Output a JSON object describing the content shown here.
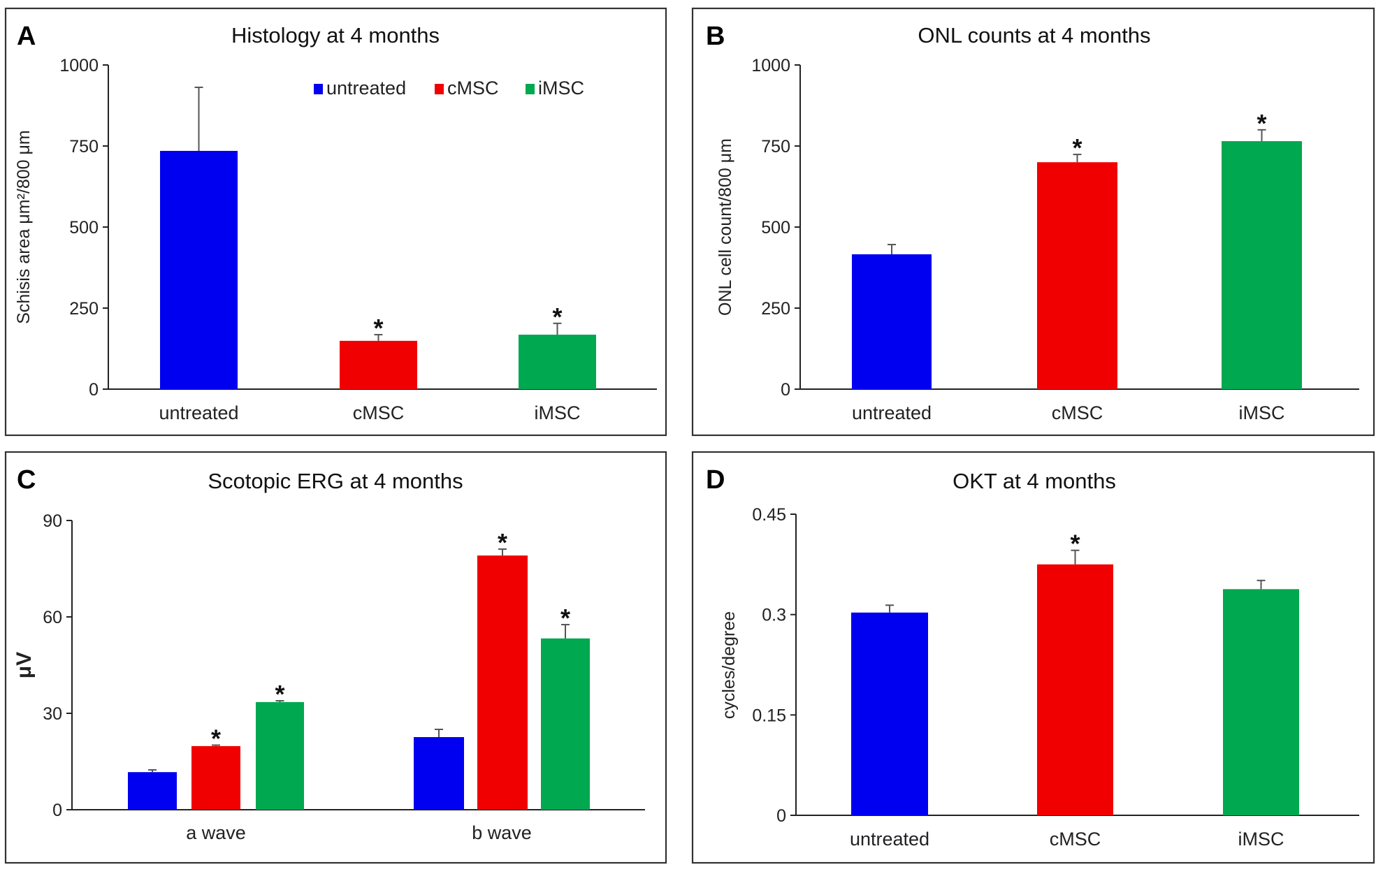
{
  "figure": {
    "colors": {
      "untreated": "#0000f0",
      "cMSC": "#f00000",
      "iMSC": "#00a84f"
    }
  },
  "chart_data": [
    {
      "panel": "A",
      "type": "bar",
      "title": "Histology at 4 months",
      "xlabel": "",
      "ylabel": "Schisis area μm²/800 μm",
      "ylim": [
        0,
        1000
      ],
      "yticks": [
        0,
        250,
        500,
        750,
        1000
      ],
      "categories": [
        "untreated",
        "cMSC",
        "iMSC"
      ],
      "values": [
        735,
        149,
        168
      ],
      "errors": [
        196,
        19,
        35
      ],
      "significant": [
        false,
        true,
        true
      ],
      "legend": {
        "entries": [
          "untreated",
          "cMSC",
          "iMSC"
        ],
        "placement": "top-right"
      },
      "grid": false
    },
    {
      "panel": "B",
      "type": "bar",
      "title": "ONL counts at 4 months",
      "xlabel": "",
      "ylabel": "ONL cell count/800 μm",
      "ylim": [
        0,
        1000
      ],
      "yticks": [
        0,
        250,
        500,
        750,
        1000
      ],
      "categories": [
        "untreated",
        "cMSC",
        "iMSC"
      ],
      "values": [
        416,
        700,
        765
      ],
      "errors": [
        30,
        24,
        35
      ],
      "significant": [
        false,
        true,
        true
      ],
      "grid": false
    },
    {
      "panel": "C",
      "type": "bar",
      "title": "Scotopic ERG at 4 months",
      "xlabel": "",
      "ylabel": "μV",
      "ylim": [
        0,
        90
      ],
      "yticks": [
        0,
        30,
        60,
        90
      ],
      "categories": [
        "a wave",
        "b wave"
      ],
      "series": [
        {
          "name": "untreated",
          "values": [
            11.7,
            22.6
          ],
          "errors": [
            0.7,
            2.4
          ],
          "significant": [
            false,
            false
          ]
        },
        {
          "name": "cMSC",
          "values": [
            19.8,
            79.1
          ],
          "errors": [
            0.3,
            2.0
          ],
          "significant": [
            true,
            true
          ]
        },
        {
          "name": "iMSC",
          "values": [
            33.5,
            53.3
          ],
          "errors": [
            0.4,
            4.3
          ],
          "significant": [
            true,
            true
          ]
        }
      ],
      "grid": false
    },
    {
      "panel": "D",
      "type": "bar",
      "title": "OKT at 4 months",
      "xlabel": "",
      "ylabel": "cycles/degree",
      "ylim": [
        0,
        0.45
      ],
      "yticks": [
        0,
        0.15,
        0.3,
        0.45
      ],
      "ytick_labels": [
        "0",
        "0.15",
        "0.3",
        "0.45"
      ],
      "categories": [
        "untreated",
        "cMSC",
        "iMSC"
      ],
      "values": [
        0.303,
        0.375,
        0.338
      ],
      "errors": [
        0.011,
        0.021,
        0.013
      ],
      "significant": [
        false,
        true,
        false
      ],
      "grid": false
    }
  ],
  "significance_marker": "*"
}
